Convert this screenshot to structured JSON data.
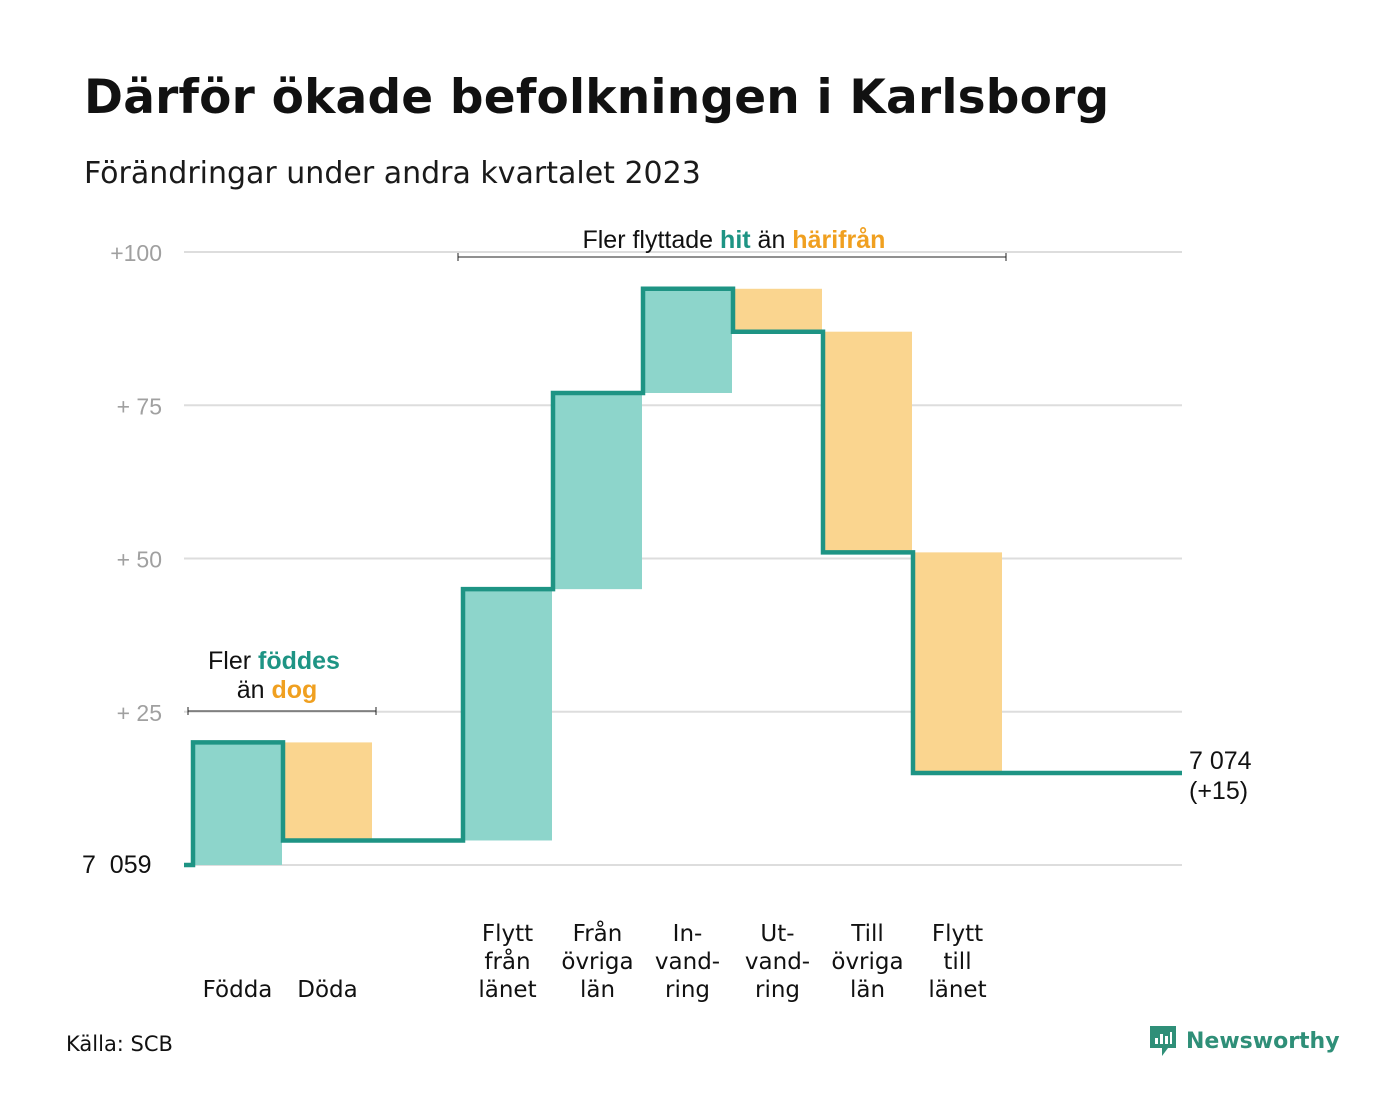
{
  "title": "Därför ökade befolkningen i Karlsborg",
  "subtitle": "Förändringar under andra kvartalet 2023",
  "source": "Källa: SCB",
  "brand": {
    "name": "Newsworthy",
    "icon": "newsworthy-logo-icon"
  },
  "colors": {
    "line": "#1e9484",
    "increase": "#8dd5cb",
    "decrease": "#fad58f",
    "accent_teal": "#1e9484",
    "accent_orange": "#f0a020",
    "grid": "#dddddd",
    "tick_text": "#a0a0a0"
  },
  "annotations": {
    "births": {
      "prefix": "Fler ",
      "hit": "föddes",
      "mid": "än ",
      "away": "dog"
    },
    "moves": {
      "prefix": "Fler flyttade ",
      "hit": "hit",
      "mid": " än ",
      "away": "härifrån"
    }
  },
  "chart_data": {
    "type": "waterfall",
    "base_label": "7  059",
    "base_value": 7059,
    "end_label": "7 074",
    "end_change_label": "(+15)",
    "end_value": 7074,
    "ylim": [
      0,
      100
    ],
    "yticks": [
      {
        "value": 25,
        "label": "+  25"
      },
      {
        "value": 50,
        "label": "+  50"
      },
      {
        "value": 75,
        "label": "+  75"
      },
      {
        "value": 100,
        "label": "+100"
      }
    ],
    "grid": true,
    "steps": [
      {
        "label": [
          "Födda"
        ],
        "change": 20
      },
      {
        "label": [
          "Döda"
        ],
        "change": -16
      },
      {
        "label": [],
        "change": 0
      },
      {
        "label": [
          "Flytt",
          "från",
          "länet"
        ],
        "change": 41
      },
      {
        "label": [
          "Från",
          "övriga",
          "län"
        ],
        "change": 32
      },
      {
        "label": [
          "In-",
          "vand-",
          "ring"
        ],
        "change": 17
      },
      {
        "label": [
          "Ut-",
          "vand-",
          "ring"
        ],
        "change": -7
      },
      {
        "label": [
          "Till",
          "övriga",
          "län"
        ],
        "change": -36
      },
      {
        "label": [
          "Flytt",
          "till",
          "länet"
        ],
        "change": -36
      }
    ]
  }
}
